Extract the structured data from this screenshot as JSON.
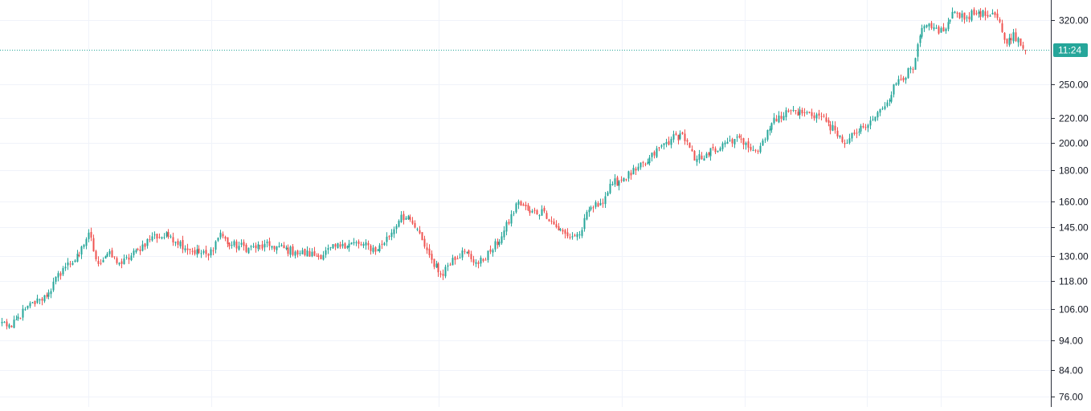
{
  "chart_data": {
    "type": "candlestick",
    "title": "",
    "xlabel": "",
    "ylabel": "",
    "y_scale": "log",
    "ylim": [
      73,
      345
    ],
    "y_ticks": [
      "320.00",
      "250.00",
      "220.00",
      "200.00",
      "180.00",
      "160.00",
      "145.00",
      "130.00",
      "118.00",
      "106.00",
      "94.00",
      "84.00",
      "76.00"
    ],
    "grid": true,
    "current_price": 285,
    "current_price_label": "11:24",
    "up_color": "#26a69a",
    "down_color": "#ef5350",
    "grid_color": "#f0f3fa",
    "anchors": [
      {
        "i": 0,
        "c": 101
      },
      {
        "i": 4,
        "c": 99
      },
      {
        "i": 10,
        "c": 106
      },
      {
        "i": 16,
        "c": 110
      },
      {
        "i": 20,
        "c": 113
      },
      {
        "i": 26,
        "c": 124
      },
      {
        "i": 33,
        "c": 130
      },
      {
        "i": 37,
        "c": 142
      },
      {
        "i": 41,
        "c": 126
      },
      {
        "i": 45,
        "c": 131
      },
      {
        "i": 51,
        "c": 126
      },
      {
        "i": 58,
        "c": 133
      },
      {
        "i": 64,
        "c": 140
      },
      {
        "i": 72,
        "c": 140
      },
      {
        "i": 80,
        "c": 133
      },
      {
        "i": 88,
        "c": 130
      },
      {
        "i": 93,
        "c": 142
      },
      {
        "i": 96,
        "c": 136
      },
      {
        "i": 105,
        "c": 134
      },
      {
        "i": 115,
        "c": 135
      },
      {
        "i": 125,
        "c": 132
      },
      {
        "i": 135,
        "c": 130
      },
      {
        "i": 145,
        "c": 136
      },
      {
        "i": 152,
        "c": 136
      },
      {
        "i": 160,
        "c": 133
      },
      {
        "i": 166,
        "c": 142
      },
      {
        "i": 170,
        "c": 152
      },
      {
        "i": 175,
        "c": 147
      },
      {
        "i": 179,
        "c": 138
      },
      {
        "i": 183,
        "c": 128
      },
      {
        "i": 187,
        "c": 121
      },
      {
        "i": 192,
        "c": 129
      },
      {
        "i": 197,
        "c": 132
      },
      {
        "i": 203,
        "c": 126
      },
      {
        "i": 208,
        "c": 132
      },
      {
        "i": 213,
        "c": 140
      },
      {
        "i": 220,
        "c": 160
      },
      {
        "i": 225,
        "c": 153
      },
      {
        "i": 231,
        "c": 154
      },
      {
        "i": 236,
        "c": 145
      },
      {
        "i": 241,
        "c": 140
      },
      {
        "i": 246,
        "c": 141
      },
      {
        "i": 250,
        "c": 155
      },
      {
        "i": 255,
        "c": 159
      },
      {
        "i": 260,
        "c": 171
      },
      {
        "i": 265,
        "c": 175
      },
      {
        "i": 270,
        "c": 180
      },
      {
        "i": 275,
        "c": 186
      },
      {
        "i": 280,
        "c": 196
      },
      {
        "i": 285,
        "c": 203
      },
      {
        "i": 290,
        "c": 207
      },
      {
        "i": 295,
        "c": 187
      },
      {
        "i": 300,
        "c": 192
      },
      {
        "i": 306,
        "c": 196
      },
      {
        "i": 312,
        "c": 203
      },
      {
        "i": 317,
        "c": 200
      },
      {
        "i": 322,
        "c": 194
      },
      {
        "i": 326,
        "c": 210
      },
      {
        "i": 331,
        "c": 222
      },
      {
        "i": 336,
        "c": 226
      },
      {
        "i": 342,
        "c": 224
      },
      {
        "i": 348,
        "c": 222
      },
      {
        "i": 352,
        "c": 216
      },
      {
        "i": 356,
        "c": 205
      },
      {
        "i": 360,
        "c": 200
      },
      {
        "i": 363,
        "c": 207
      },
      {
        "i": 368,
        "c": 212
      },
      {
        "i": 375,
        "c": 228
      },
      {
        "i": 382,
        "c": 255
      },
      {
        "i": 388,
        "c": 265
      },
      {
        "i": 392,
        "c": 310
      },
      {
        "i": 396,
        "c": 310
      },
      {
        "i": 401,
        "c": 306
      },
      {
        "i": 406,
        "c": 330
      },
      {
        "i": 411,
        "c": 323
      },
      {
        "i": 416,
        "c": 330
      },
      {
        "i": 420,
        "c": 324
      },
      {
        "i": 424,
        "c": 322
      },
      {
        "i": 428,
        "c": 292
      },
      {
        "i": 431,
        "c": 305
      },
      {
        "i": 434,
        "c": 290
      },
      {
        "i": 436,
        "c": 285
      }
    ]
  }
}
